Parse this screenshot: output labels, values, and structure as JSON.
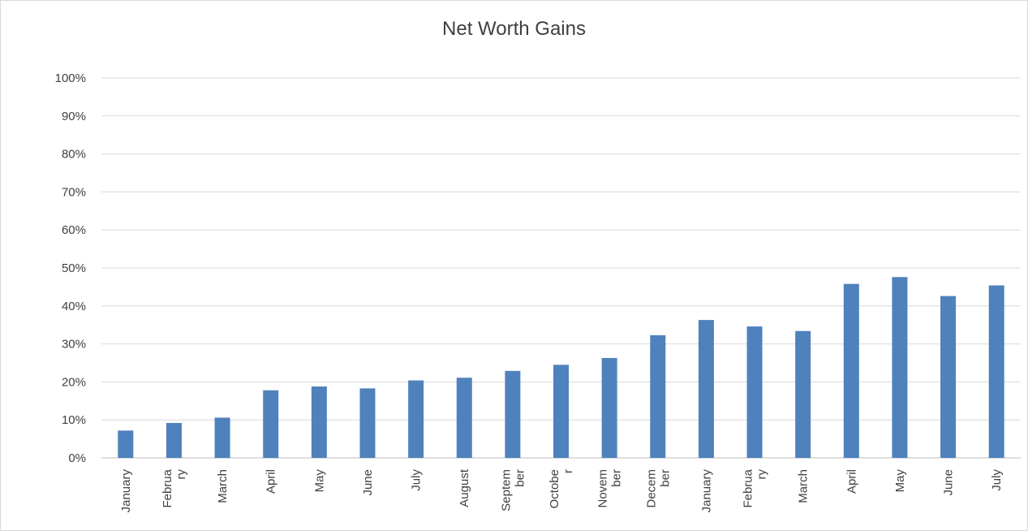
{
  "chart_data": {
    "type": "bar",
    "title": "Net Worth Gains",
    "xlabel": "",
    "ylabel": "",
    "ylim": [
      0,
      100
    ],
    "y_ticks": [
      "0%",
      "10%",
      "20%",
      "30%",
      "40%",
      "50%",
      "60%",
      "70%",
      "80%",
      "90%",
      "100%"
    ],
    "grid": true,
    "legend": "none",
    "bar_color": "#4f81bd",
    "categories": [
      [
        "January"
      ],
      [
        "Februa",
        "ry"
      ],
      [
        "March"
      ],
      [
        "April"
      ],
      [
        "May"
      ],
      [
        "June"
      ],
      [
        "July"
      ],
      [
        "August"
      ],
      [
        "Septem",
        "ber"
      ],
      [
        "Octobe",
        "r"
      ],
      [
        "Novem",
        "ber"
      ],
      [
        "Decem",
        "ber"
      ],
      [
        "January"
      ],
      [
        "Februa",
        "ry"
      ],
      [
        "March"
      ],
      [
        "April"
      ],
      [
        "May"
      ],
      [
        "June"
      ],
      [
        "July"
      ]
    ],
    "values": [
      7.2,
      9.2,
      10.6,
      17.8,
      18.8,
      18.3,
      20.4,
      21.1,
      22.9,
      24.5,
      26.3,
      32.3,
      36.3,
      34.6,
      33.4,
      45.8,
      47.6,
      42.6,
      45.4
    ]
  }
}
